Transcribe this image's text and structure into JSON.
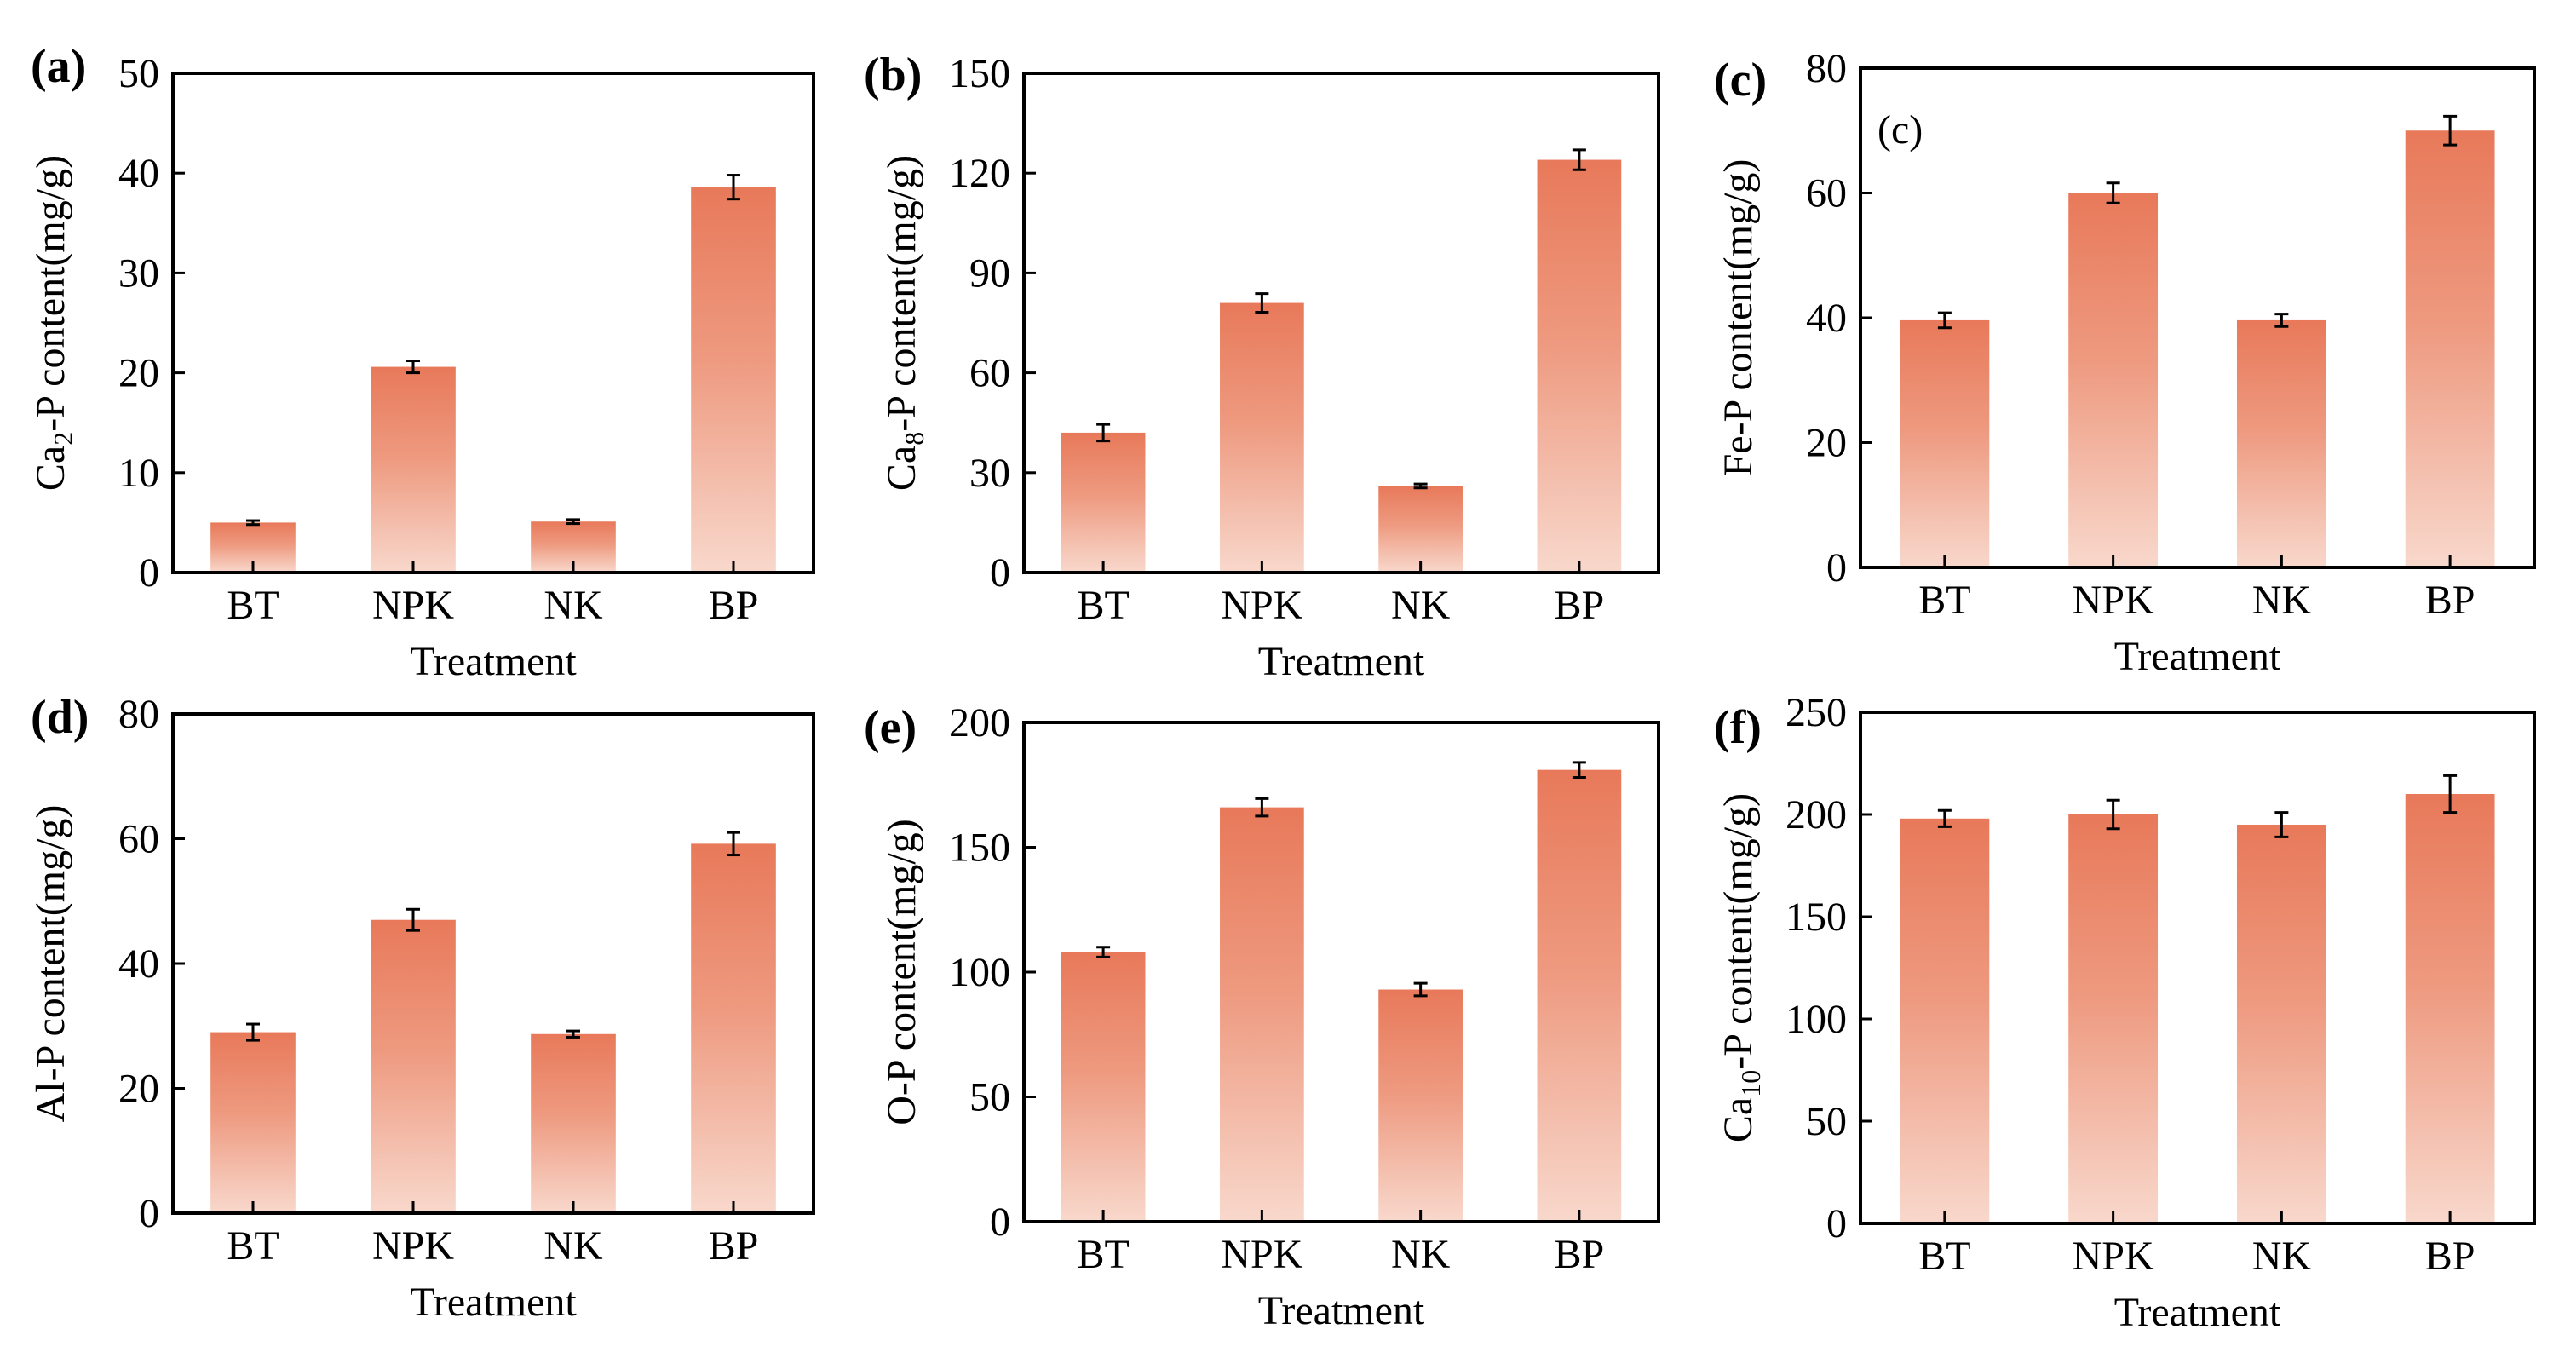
{
  "colors": {
    "bar_top": "#E8795A",
    "bar_bottom": "#F8D8CC",
    "axis": "#000000",
    "error": "#000000"
  },
  "chart_data": [
    {
      "panel": "(a)",
      "type": "bar",
      "categories": [
        "BT",
        "NPK",
        "NK",
        "BP"
      ],
      "values": [
        5.0,
        20.6,
        5.1,
        38.6
      ],
      "errors": [
        0.2,
        0.6,
        0.2,
        1.2
      ],
      "xlabel": "Treatment",
      "ylabel_parts": [
        [
          "Ca",
          "n"
        ],
        [
          "2",
          "sub"
        ],
        [
          "-P content(mg/g)",
          "n"
        ]
      ],
      "ylim": [
        0,
        50
      ],
      "yticks": [
        0,
        10,
        20,
        30,
        40,
        50
      ],
      "ytick_labels": [
        "0",
        "10",
        "20",
        "30",
        "40",
        "50"
      ],
      "annotation": ""
    },
    {
      "panel": "(b)",
      "type": "bar",
      "categories": [
        "BT",
        "NPK",
        "NK",
        "BP"
      ],
      "values": [
        42,
        81,
        26,
        124
      ],
      "errors": [
        2.5,
        2.8,
        0.6,
        3.0
      ],
      "xlabel": "Treatment",
      "ylabel_parts": [
        [
          "Ca",
          "n"
        ],
        [
          "8",
          "sub"
        ],
        [
          "-P content(mg/g)",
          "n"
        ]
      ],
      "ylim": [
        0,
        150
      ],
      "yticks": [
        0,
        30,
        60,
        90,
        120,
        150
      ],
      "ytick_labels": [
        "0",
        "30",
        "60",
        "90",
        "120",
        "150"
      ],
      "annotation": ""
    },
    {
      "panel": "(c)",
      "type": "bar",
      "categories": [
        "BT",
        "NPK",
        "NK",
        "BP"
      ],
      "values": [
        39.6,
        60.0,
        39.6,
        70.0
      ],
      "errors": [
        1.2,
        1.6,
        1.0,
        2.3
      ],
      "xlabel": "Treatment",
      "ylabel_parts": [
        [
          "Fe-P content(mg/g)",
          "n"
        ]
      ],
      "ylim": [
        0,
        80
      ],
      "yticks": [
        0,
        20,
        40,
        60,
        80
      ],
      "ytick_labels": [
        "0",
        "20",
        "40",
        "60",
        "80"
      ],
      "annotation": "(c)"
    },
    {
      "panel": "(d)",
      "type": "bar",
      "categories": [
        "BT",
        "NPK",
        "NK",
        "BP"
      ],
      "values": [
        29.0,
        47.0,
        28.7,
        59.2
      ],
      "errors": [
        1.3,
        1.7,
        0.5,
        1.8
      ],
      "xlabel": "Treatment",
      "ylabel_parts": [
        [
          "Al-P content(mg/g)",
          "n"
        ]
      ],
      "ylim": [
        0,
        80
      ],
      "yticks": [
        0,
        20,
        40,
        60,
        80
      ],
      "ytick_labels": [
        "0",
        "20",
        "40",
        "60",
        "80"
      ],
      "annotation": ""
    },
    {
      "panel": "(e)",
      "type": "bar",
      "categories": [
        "BT",
        "NPK",
        "NK",
        "BP"
      ],
      "values": [
        108,
        166,
        93,
        181
      ],
      "errors": [
        2.0,
        3.5,
        2.5,
        3.0
      ],
      "xlabel": "Treatment",
      "ylabel_parts": [
        [
          "O-P content(mg/g)",
          "n"
        ]
      ],
      "ylim": [
        0,
        200
      ],
      "yticks": [
        0,
        50,
        100,
        150,
        200
      ],
      "ytick_labels": [
        "0",
        "50",
        "100",
        "150",
        "200"
      ],
      "annotation": ""
    },
    {
      "panel": "(f)",
      "type": "bar",
      "categories": [
        "BT",
        "NPK",
        "NK",
        "BP"
      ],
      "values": [
        198,
        200,
        195,
        210
      ],
      "errors": [
        4,
        7,
        6,
        9
      ],
      "xlabel": "Treatment",
      "ylabel_parts": [
        [
          "Ca",
          "n"
        ],
        [
          "10",
          "sub"
        ],
        [
          "-P content(mg/g)",
          "n"
        ]
      ],
      "ylim": [
        0,
        250
      ],
      "yticks": [
        0,
        50,
        100,
        150,
        200,
        250
      ],
      "ytick_labels": [
        "0",
        "50",
        "100",
        "150",
        "200",
        "250"
      ],
      "annotation": ""
    }
  ]
}
